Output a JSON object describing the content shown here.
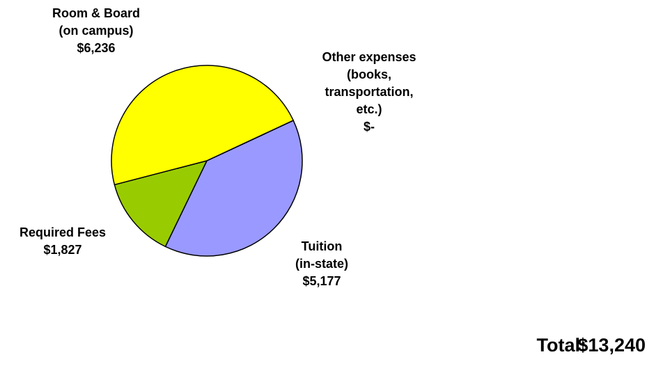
{
  "chart_data": {
    "type": "pie",
    "categories": [
      [
        "Tuition",
        "(in-state)"
      ],
      [
        "Required Fees"
      ],
      [
        "Room & Board",
        "(on campus)"
      ],
      [
        "Other expenses",
        "(books,",
        "transportation,",
        "etc.)"
      ]
    ],
    "values": [
      5177,
      1827,
      6236,
      0
    ],
    "value_labels": [
      "$5,177",
      "$1,827",
      "$6,236",
      "$-"
    ],
    "colors": [
      "#9999ff",
      "#99cc00",
      "#ffff00",
      "#ff9900"
    ],
    "total": {
      "label": "Total:",
      "value": "$13,240"
    }
  }
}
